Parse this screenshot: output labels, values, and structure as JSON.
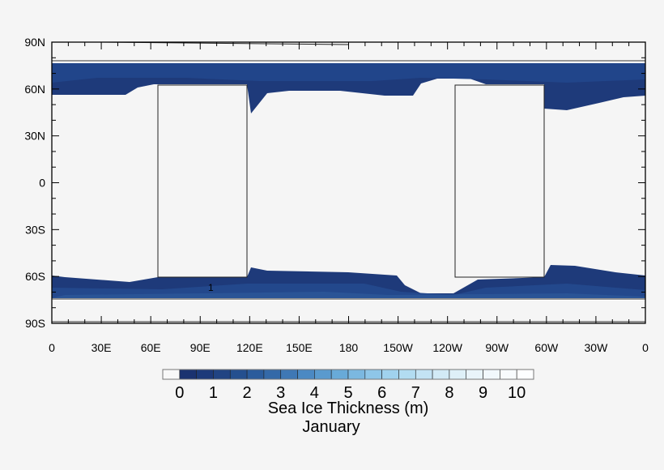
{
  "chart_data": {
    "type": "heatmap",
    "subtype": "filled-contour-map",
    "title": "January",
    "colorbar_label": "Sea Ice Thickness (m)",
    "colorbar_ticks": [
      "0",
      "1",
      "2",
      "3",
      "4",
      "5",
      "6",
      "7",
      "8",
      "9",
      "10"
    ],
    "colorbar_range": [
      0,
      10
    ],
    "colorbar_levels": 21,
    "colors": [
      "#f8f8f8",
      "#1b3270",
      "#1d3a7a",
      "#214483",
      "#25508f",
      "#2b5c9c",
      "#3469a8",
      "#3f78b5",
      "#4b89c3",
      "#5a9ace",
      "#68aad8",
      "#7bb8e0",
      "#8ec6e8",
      "#a0d2ee",
      "#b2dcf1",
      "#c3e3f4",
      "#d2eaf6",
      "#def0f8",
      "#e9f4fa",
      "#f1f8fc",
      "#f8fbfd",
      "#fdfeff"
    ],
    "y_ticks": [
      "90N",
      "60N",
      "30N",
      "0",
      "30S",
      "60S",
      "90S"
    ],
    "x_ticks": [
      "0",
      "30E",
      "60E",
      "90E",
      "120E",
      "150E",
      "180",
      "150W",
      "120W",
      "90W",
      "60W",
      "30W",
      "0"
    ],
    "contour_labels": [
      "1"
    ],
    "lon_range": [
      0,
      360
    ],
    "lat_range": [
      -90,
      90
    ],
    "regions": [
      {
        "name": "arctic ice band",
        "lat_range": [
          56,
          78
        ],
        "thickness_m": [
          0,
          1
        ]
      },
      {
        "name": "antarctic ice band",
        "lat_range": [
          -77,
          -55
        ],
        "thickness_m": [
          0,
          1.5
        ]
      }
    ]
  }
}
